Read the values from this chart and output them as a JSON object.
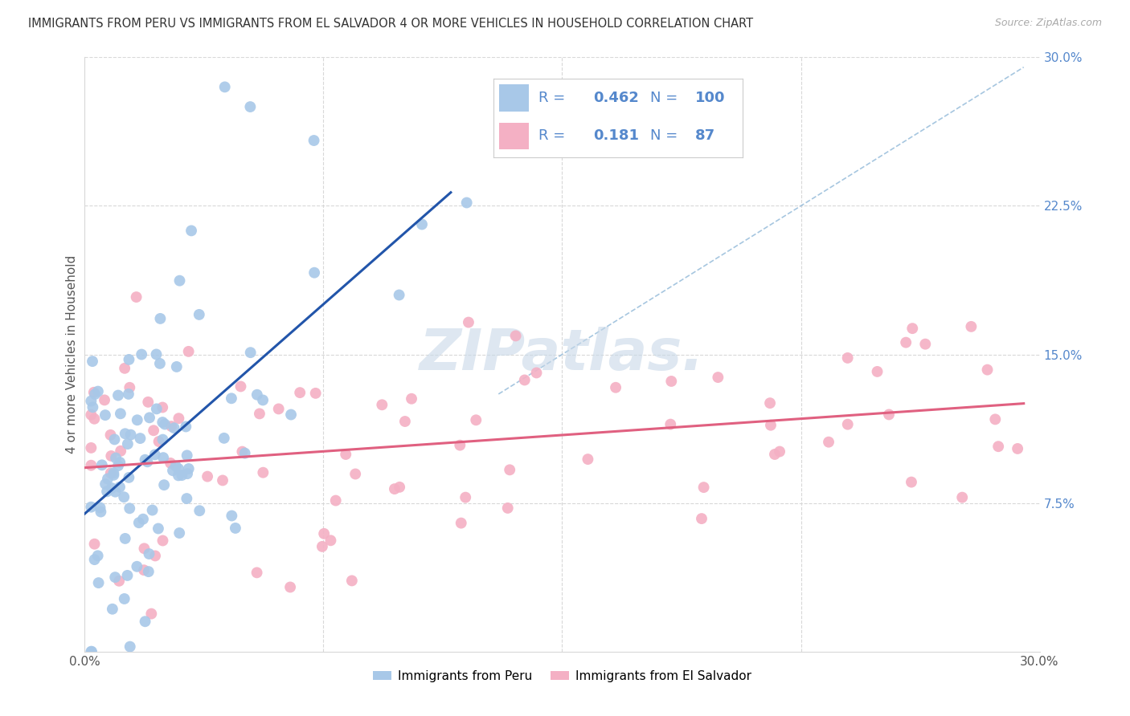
{
  "title": "IMMIGRANTS FROM PERU VS IMMIGRANTS FROM EL SALVADOR 4 OR MORE VEHICLES IN HOUSEHOLD CORRELATION CHART",
  "source": "Source: ZipAtlas.com",
  "ylabel": "4 or more Vehicles in Household",
  "xlim": [
    0.0,
    0.3
  ],
  "ylim": [
    0.0,
    0.3
  ],
  "legend_entry1": {
    "label": "Immigrants from Peru",
    "R": "0.462",
    "N": "100"
  },
  "legend_entry2": {
    "label": "Immigrants from El Salvador",
    "R": "0.181",
    "N": "87"
  },
  "watermark": "ZIPatlas.",
  "blue_scatter_color": "#a8c8e8",
  "pink_scatter_color": "#f4b0c4",
  "blue_line_color": "#2255aa",
  "pink_line_color": "#e06080",
  "dashed_line_color": "#90b8d8",
  "legend_color": "#5588cc",
  "background_color": "#ffffff",
  "grid_color": "#d8d8d8",
  "peru_R": 0.462,
  "peru_N": 100,
  "salv_R": 0.181,
  "salv_N": 87,
  "blue_line_x": [
    0.0,
    0.115
  ],
  "blue_line_y": [
    0.055,
    0.205
  ],
  "pink_line_x": [
    0.0,
    0.295
  ],
  "pink_line_y": [
    0.09,
    0.125
  ],
  "diag_line_x": [
    0.13,
    0.295
  ],
  "diag_line_y": [
    0.13,
    0.295
  ]
}
